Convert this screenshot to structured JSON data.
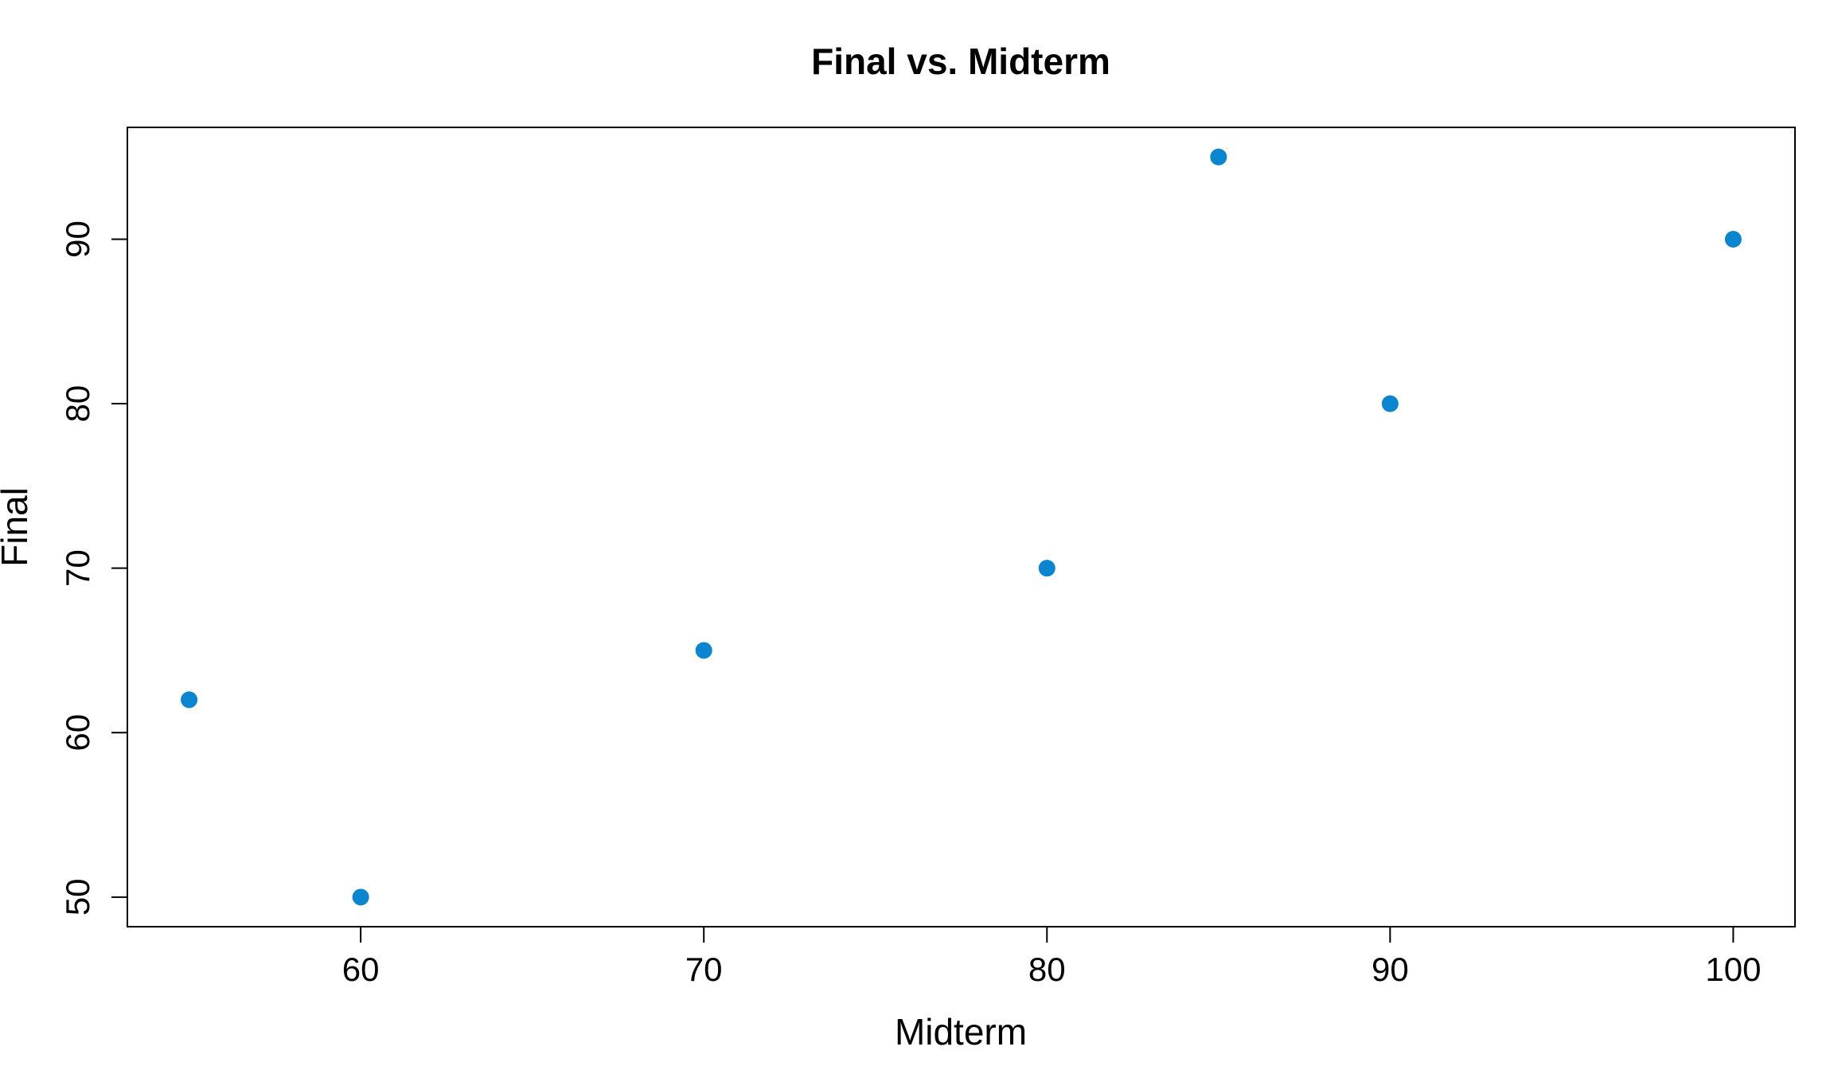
{
  "chart_data": {
    "type": "scatter",
    "title": "Final vs. Midterm",
    "xlabel": "Midterm",
    "ylabel": "Final",
    "xlim": [
      53.2,
      101.8
    ],
    "ylim": [
      48.2,
      96.8
    ],
    "xticks": [
      60,
      70,
      80,
      90,
      100
    ],
    "yticks": [
      50,
      60,
      70,
      80,
      90
    ],
    "grid": false,
    "point_color": "#0a85cf",
    "points": [
      {
        "x": 55,
        "y": 62
      },
      {
        "x": 60,
        "y": 50
      },
      {
        "x": 70,
        "y": 65
      },
      {
        "x": 80,
        "y": 70
      },
      {
        "x": 85,
        "y": 95
      },
      {
        "x": 90,
        "y": 80
      },
      {
        "x": 100,
        "y": 90
      }
    ]
  }
}
